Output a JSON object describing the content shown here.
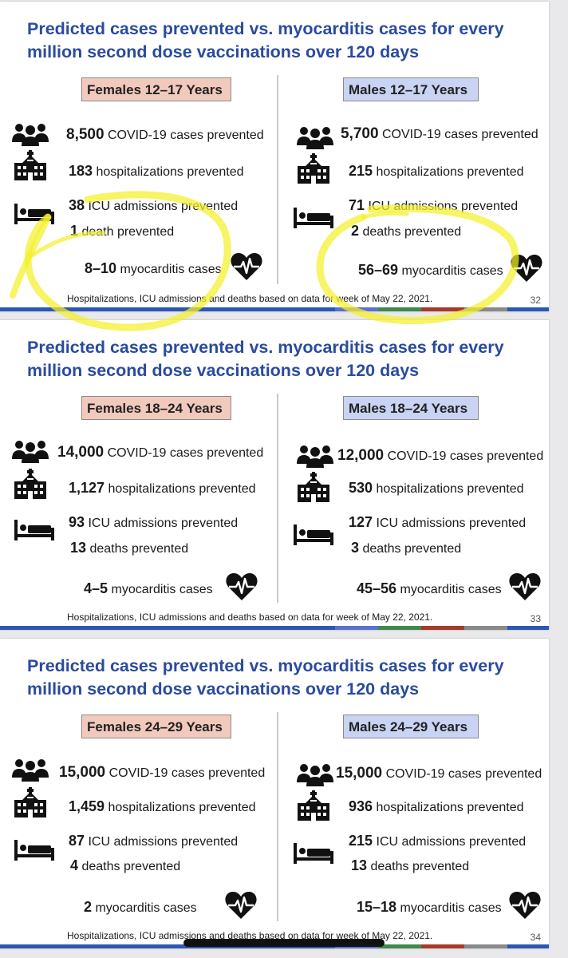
{
  "colors": {
    "title_blue": "#2a4b9e",
    "female_fill": "#f2c9bd",
    "male_fill": "#c9d3f3",
    "icon": "#111111",
    "highlight": "#f4f02a",
    "footer_bar": [
      "#2d57b4",
      "#5b6fd6",
      "#3f8a4a",
      "#a63a2a",
      "#8a8a8a"
    ]
  },
  "icons": {
    "cases": "people-group-icon",
    "hospital": "hospital-building-icon",
    "icu": "hospital-bed-icon",
    "myocarditis": "heart-rate-icon"
  },
  "slides": [
    {
      "title": "Predicted cases prevented vs. myocarditis cases for every million second dose vaccinations over 120 days",
      "page": "32",
      "footnote": "Hospitalizations, ICU admissions and deaths based on data for week of May 22, 2021.",
      "highlighted": true,
      "female": {
        "label": "Females 12–17 Years",
        "cases": "8,500",
        "cases_text": "COVID-19 cases prevented",
        "hosp": "183",
        "hosp_text": "hospitalizations prevented",
        "icu": "38",
        "icu_text": "ICU admissions prevented",
        "deaths": "1",
        "deaths_text": "death prevented",
        "myo": "8–10",
        "myo_text": "myocarditis cases"
      },
      "male": {
        "label": "Males 12–17 Years",
        "cases": "5,700",
        "cases_text": "COVID-19 cases prevented",
        "hosp": "215",
        "hosp_text": "hospitalizations prevented",
        "icu": "71",
        "icu_text": "ICU admissions prevented",
        "deaths": "2",
        "deaths_text": "deaths prevented",
        "myo": "56–69",
        "myo_text": "myocarditis cases"
      }
    },
    {
      "title": "Predicted cases prevented vs. myocarditis cases for every million second dose vaccinations over 120 days",
      "page": "33",
      "footnote": "Hospitalizations, ICU admissions and deaths based on data for week of May 22, 2021.",
      "highlighted": false,
      "female": {
        "label": "Females 18–24 Years",
        "cases": "14,000",
        "cases_text": "COVID-19 cases prevented",
        "hosp": "1,127",
        "hosp_text": "hospitalizations prevented",
        "icu": "93",
        "icu_text": "ICU admissions prevented",
        "deaths": "13",
        "deaths_text": "deaths prevented",
        "myo": "4–5",
        "myo_text": "myocarditis cases"
      },
      "male": {
        "label": "Males 18–24 Years",
        "cases": "12,000",
        "cases_text": "COVID-19 cases prevented",
        "hosp": "530",
        "hosp_text": "hospitalizations prevented",
        "icu": "127",
        "icu_text": "ICU admissions prevented",
        "deaths": "3",
        "deaths_text": "deaths prevented",
        "myo": "45–56",
        "myo_text": "myocarditis cases"
      }
    },
    {
      "title": "Predicted cases prevented vs. myocarditis cases for every million second dose vaccinations over 120 days",
      "page": "34",
      "footnote": "Hospitalizations, ICU admissions and deaths based on data for week of May 22, 2021.",
      "highlighted": false,
      "female": {
        "label": "Females 24–29 Years",
        "cases": "15,000",
        "cases_text": "COVID-19 cases prevented",
        "hosp": "1,459",
        "hosp_text": "hospitalizations prevented",
        "icu": "87",
        "icu_text": "ICU admissions prevented",
        "deaths": "4",
        "deaths_text": "deaths prevented",
        "myo": "2",
        "myo_text": "myocarditis cases"
      },
      "male": {
        "label": "Males 24–29 Years",
        "cases": "15,000",
        "cases_text": "COVID-19 cases prevented",
        "hosp": "936",
        "hosp_text": "hospitalizations prevented",
        "icu": "215",
        "icu_text": "ICU admissions prevented",
        "deaths": "13",
        "deaths_text": "deaths prevented",
        "myo": "15–18",
        "myo_text": "myocarditis cases"
      }
    }
  ]
}
